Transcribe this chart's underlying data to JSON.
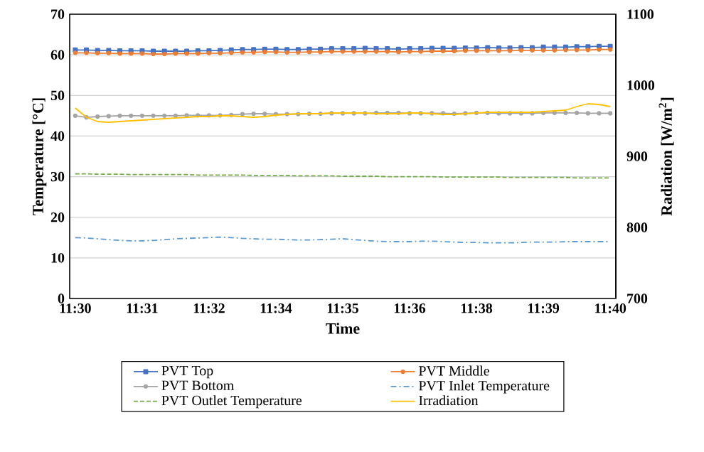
{
  "chart_data": {
    "type": "line",
    "xlabel": "Time",
    "ylabel": "Temperature [°C]",
    "y2label": "Radiation [W/m$^{2}$]",
    "categories": [
      "11:30",
      null,
      null,
      null,
      null,
      null,
      "11:31",
      null,
      null,
      null,
      null,
      null,
      "11:32",
      null,
      null,
      null,
      null,
      null,
      "11:34",
      null,
      null,
      null,
      null,
      null,
      "11:35",
      null,
      null,
      null,
      null,
      null,
      "11:36",
      null,
      null,
      null,
      null,
      null,
      "11:38",
      null,
      null,
      null,
      null,
      null,
      "11:39",
      null,
      null,
      null,
      null,
      null,
      "11:40"
    ],
    "ylim": [
      0,
      70
    ],
    "yticks": [
      0,
      10,
      20,
      30,
      40,
      50,
      60,
      70
    ],
    "y2lim": [
      700,
      1100
    ],
    "y2ticks": [
      700,
      800,
      900,
      1000,
      1100
    ],
    "grid": "y",
    "legend": "bottom",
    "series": [
      {
        "name": "PVT Top",
        "color": "#4472c4",
        "marker": "square",
        "values": [
          61.2,
          61.2,
          61.1,
          61.1,
          61.0,
          61.0,
          61.0,
          60.9,
          60.9,
          60.9,
          60.9,
          61.0,
          61.0,
          61.1,
          61.2,
          61.3,
          61.3,
          61.4,
          61.4,
          61.3,
          61.3,
          61.4,
          61.4,
          61.5,
          61.5,
          61.5,
          61.6,
          61.5,
          61.5,
          61.4,
          61.5,
          61.5,
          61.6,
          61.6,
          61.6,
          61.7,
          61.7,
          61.8,
          61.7,
          61.7,
          61.8,
          61.8,
          61.9,
          61.9,
          61.9,
          62.0,
          62.0,
          62.1,
          62.1
        ]
      },
      {
        "name": "PVT Middle",
        "color": "#ed7d31",
        "marker": "circle",
        "values": [
          60.5,
          60.5,
          60.4,
          60.4,
          60.3,
          60.3,
          60.3,
          60.2,
          60.2,
          60.3,
          60.3,
          60.3,
          60.4,
          60.4,
          60.5,
          60.6,
          60.6,
          60.7,
          60.7,
          60.6,
          60.6,
          60.7,
          60.7,
          60.8,
          60.8,
          60.8,
          60.8,
          60.8,
          60.8,
          60.7,
          60.8,
          60.8,
          60.9,
          60.9,
          60.9,
          61.0,
          61.0,
          61.0,
          61.0,
          61.0,
          61.1,
          61.1,
          61.1,
          61.1,
          61.2,
          61.2,
          61.2,
          61.3,
          61.3
        ]
      },
      {
        "name": "PVT Bottom",
        "color": "#a5a5a5",
        "marker": "circle",
        "values": [
          45.0,
          44.6,
          44.8,
          44.9,
          45.0,
          45.0,
          45.0,
          45.0,
          45.0,
          45.0,
          45.1,
          45.1,
          45.1,
          45.1,
          45.2,
          45.4,
          45.5,
          45.5,
          45.4,
          45.4,
          45.4,
          45.5,
          45.5,
          45.6,
          45.6,
          45.6,
          45.6,
          45.7,
          45.7,
          45.7,
          45.6,
          45.6,
          45.6,
          45.6,
          45.5,
          45.6,
          45.7,
          45.7,
          45.6,
          45.6,
          45.6,
          45.6,
          45.7,
          45.7,
          45.7,
          45.7,
          45.6,
          45.6,
          45.6
        ]
      },
      {
        "name": "PVT Inlet Temperature",
        "color": "#5b9bd5",
        "line_style": "dashdot",
        "values": [
          15.0,
          14.9,
          14.7,
          14.5,
          14.3,
          14.2,
          14.2,
          14.3,
          14.5,
          14.7,
          14.8,
          14.9,
          15.0,
          15.1,
          15.0,
          14.8,
          14.7,
          14.6,
          14.6,
          14.5,
          14.4,
          14.4,
          14.5,
          14.6,
          14.7,
          14.5,
          14.3,
          14.1,
          14.0,
          14.0,
          14.0,
          14.1,
          14.1,
          14.0,
          13.9,
          13.8,
          13.8,
          13.7,
          13.7,
          13.7,
          13.8,
          13.9,
          13.9,
          13.9,
          14.0,
          14.0,
          14.0,
          14.0,
          14.0
        ]
      },
      {
        "name": "PVT Outlet Temperature",
        "color": "#70ad47",
        "line_style": "dashed",
        "values": [
          30.7,
          30.7,
          30.6,
          30.6,
          30.6,
          30.5,
          30.5,
          30.5,
          30.5,
          30.5,
          30.5,
          30.4,
          30.4,
          30.4,
          30.4,
          30.4,
          30.3,
          30.3,
          30.3,
          30.3,
          30.2,
          30.2,
          30.2,
          30.2,
          30.1,
          30.1,
          30.1,
          30.1,
          30.0,
          30.0,
          30.0,
          30.0,
          30.0,
          29.9,
          29.9,
          29.9,
          29.9,
          29.9,
          29.9,
          29.8,
          29.8,
          29.8,
          29.8,
          29.8,
          29.8,
          29.7,
          29.7,
          29.7,
          29.7
        ]
      },
      {
        "name": "Irradiation",
        "color": "#ffc000",
        "axis": "y2",
        "values": [
          968,
          955,
          949,
          948,
          949,
          950,
          951,
          952,
          953,
          954,
          955,
          956,
          956,
          957,
          957,
          956,
          955,
          956,
          958,
          959,
          960,
          960,
          960,
          961,
          961,
          961,
          961,
          960,
          960,
          960,
          961,
          961,
          960,
          959,
          959,
          960,
          961,
          962,
          962,
          962,
          962,
          962,
          963,
          964,
          965,
          970,
          974,
          973,
          970
        ]
      }
    ]
  }
}
